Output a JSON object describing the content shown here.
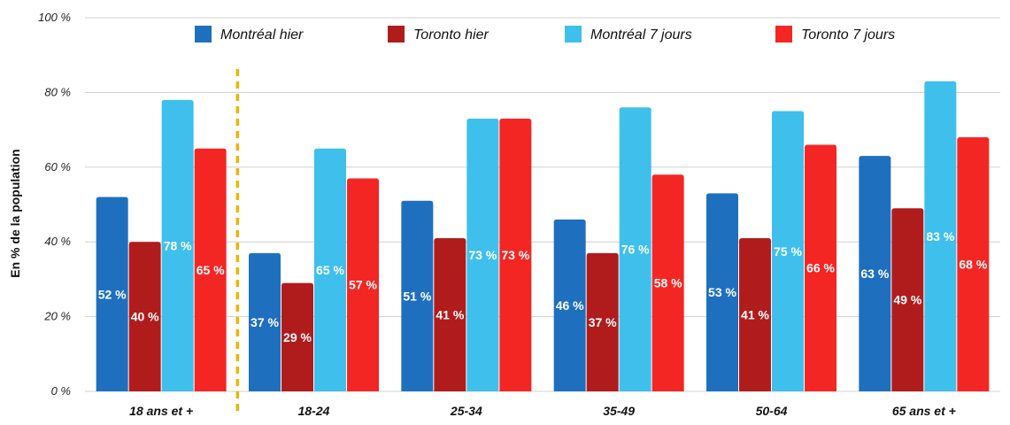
{
  "chart_data": {
    "type": "bar",
    "title": "",
    "xlabel": "",
    "ylabel": "En % de la population",
    "ylim": [
      0,
      100
    ],
    "yticks": [
      0,
      20,
      40,
      60,
      80,
      100
    ],
    "ytick_labels": [
      "0 %",
      "20 %",
      "40 %",
      "60 %",
      "80 %",
      "100 %"
    ],
    "grid": true,
    "legend_position": "top",
    "categories": [
      "18 ans et +",
      "18-24",
      "25-34",
      "35-49",
      "50-64",
      "65 ans et +"
    ],
    "separator_after_category": "18 ans et +",
    "series": [
      {
        "name": "Montréal hier",
        "color": "#1f6fbf",
        "values": [
          52,
          37,
          51,
          46,
          53,
          63
        ],
        "labels": [
          "52 %",
          "37 %",
          "51 %",
          "46 %",
          "53 %",
          "63 %"
        ]
      },
      {
        "name": "Toronto hier",
        "color": "#b01c1c",
        "values": [
          40,
          29,
          41,
          37,
          41,
          49
        ],
        "labels": [
          "40 %",
          "29 %",
          "41 %",
          "37 %",
          "41 %",
          "49 %"
        ]
      },
      {
        "name": "Montréal 7 jours",
        "color": "#3fbfec",
        "values": [
          78,
          65,
          73,
          76,
          75,
          83
        ],
        "labels": [
          "78 %",
          "65 %",
          "73 %",
          "76 %",
          "75 %",
          "83 %"
        ]
      },
      {
        "name": "Toronto 7 jours",
        "color": "#f42624",
        "values": [
          65,
          57,
          73,
          58,
          66,
          68
        ],
        "labels": [
          "65 %",
          "57 %",
          "73 %",
          "58 %",
          "66 %",
          "68 %"
        ]
      }
    ],
    "separator_color": "#f0b400",
    "gridline_color": "#d0d0d0"
  }
}
